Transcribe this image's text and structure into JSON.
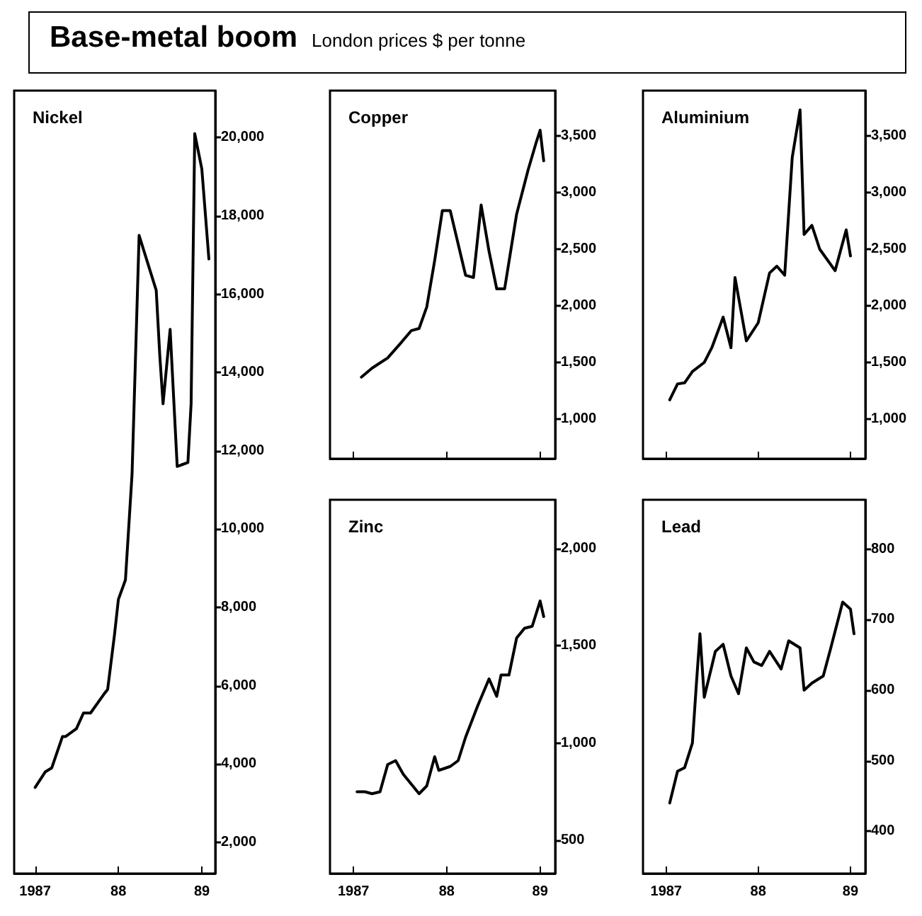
{
  "chart_data": [
    {
      "type": "other",
      "title": "Base-metal boom",
      "subtitle": "London prices $ per tonne"
    },
    {
      "type": "line",
      "title": "Nickel",
      "color": "#000000",
      "marker": "none",
      "grid": false,
      "line_style": "solid",
      "xlim": [
        "1986-10",
        "1989-03"
      ],
      "xticks": [
        {
          "value": "1987-01",
          "label": "1987"
        },
        {
          "value": "1988-01",
          "label": "88"
        },
        {
          "value": "1989-01",
          "label": "89"
        }
      ],
      "ylim": [
        1200,
        21200
      ],
      "yticks": [
        {
          "value": 2000,
          "label": "2,000"
        },
        {
          "value": 4000,
          "label": "4,000"
        },
        {
          "value": 6000,
          "label": "6,000"
        },
        {
          "value": 8000,
          "label": "8,000"
        },
        {
          "value": 10000,
          "label": "10,000"
        },
        {
          "value": 12000,
          "label": "12,000"
        },
        {
          "value": 14000,
          "label": "14,000"
        },
        {
          "value": 16000,
          "label": "16,000"
        },
        {
          "value": 18000,
          "label": "18,000"
        },
        {
          "value": 20000,
          "label": "20,000"
        }
      ],
      "x": [
        "1987-01-01",
        "1987-02-15",
        "1987-03-15",
        "1987-05-01",
        "1987-05-15",
        "1987-07-01",
        "1987-08-01",
        "1987-09-01",
        "1987-11-01",
        "1987-11-15",
        "1987-12-15",
        "1988-01-01",
        "1988-02-01",
        "1988-03-01",
        "1988-04-01",
        "1988-06-15",
        "1988-07-01",
        "1988-07-15",
        "1988-08-15",
        "1988-09-15",
        "1988-11-01",
        "1988-11-15",
        "1988-12-01",
        "1989-01-01",
        "1989-02-01"
      ],
      "values": [
        3400,
        3800,
        3900,
        4700,
        4700,
        4900,
        5300,
        5300,
        5800,
        5900,
        7300,
        8200,
        8700,
        11400,
        17500,
        16100,
        14400,
        13200,
        15100,
        11600,
        11700,
        13200,
        20100,
        19200,
        16900
      ]
    },
    {
      "type": "line",
      "title": "Copper",
      "color": "#000000",
      "marker": "none",
      "grid": false,
      "line_style": "solid",
      "tick_labels": "y",
      "xlim": [
        "1986-10",
        "1989-03"
      ],
      "xticks": [
        {
          "value": "1987-01",
          "label": null
        },
        {
          "value": "1988-01",
          "label": null
        },
        {
          "value": "1989-01",
          "label": null
        }
      ],
      "ylim": [
        650,
        3900
      ],
      "yticks": [
        {
          "value": 1000,
          "label": "1,000"
        },
        {
          "value": 1500,
          "label": "1,500"
        },
        {
          "value": 2000,
          "label": "2,000"
        },
        {
          "value": 2500,
          "label": "2,500"
        },
        {
          "value": 3000,
          "label": "3,000"
        },
        {
          "value": 3500,
          "label": "3,500"
        }
      ],
      "x": [
        "1987-02-01",
        "1987-03-15",
        "1987-05-15",
        "1987-07-01",
        "1987-08-15",
        "1987-09-15",
        "1987-10-15",
        "1987-11-15",
        "1987-12-15",
        "1988-01-15",
        "1988-03-15",
        "1988-04-15",
        "1988-05-15",
        "1988-06-15",
        "1988-07-15",
        "1988-08-15",
        "1988-10-01",
        "1988-11-15",
        "1988-12-15",
        "1989-01-01",
        "1989-01-15"
      ],
      "values": [
        1370,
        1450,
        1540,
        1660,
        1780,
        1800,
        1990,
        2400,
        2840,
        2840,
        2270,
        2250,
        2890,
        2480,
        2150,
        2150,
        2810,
        3200,
        3430,
        3550,
        3280
      ]
    },
    {
      "type": "line",
      "title": "Aluminium",
      "color": "#000000",
      "marker": "none",
      "grid": false,
      "line_style": "solid",
      "tick_labels": "y",
      "xlim": [
        "1986-10",
        "1989-03"
      ],
      "xticks": [
        {
          "value": "1987-01",
          "label": null
        },
        {
          "value": "1988-01",
          "label": null
        },
        {
          "value": "1989-01",
          "label": null
        }
      ],
      "ylim": [
        650,
        3900
      ],
      "yticks": [
        {
          "value": 1000,
          "label": "1,000"
        },
        {
          "value": 1500,
          "label": "1,500"
        },
        {
          "value": 2000,
          "label": "2,000"
        },
        {
          "value": 2500,
          "label": "2,500"
        },
        {
          "value": 3000,
          "label": "3,000"
        },
        {
          "value": 3500,
          "label": "3,500"
        }
      ],
      "x": [
        "1987-01-15",
        "1987-02-15",
        "1987-03-15",
        "1987-04-15",
        "1987-06-01",
        "1987-07-01",
        "1987-08-15",
        "1987-09-15",
        "1987-10-01",
        "1987-11-15",
        "1988-01-01",
        "1988-02-15",
        "1988-03-15",
        "1988-04-15",
        "1988-05-15",
        "1988-06-15",
        "1988-07-01",
        "1988-08-01",
        "1988-09-01",
        "1988-11-01",
        "1988-12-15",
        "1989-01-01"
      ],
      "values": [
        1170,
        1310,
        1320,
        1420,
        1500,
        1630,
        1900,
        1630,
        2250,
        1690,
        1850,
        2290,
        2350,
        2270,
        3310,
        3730,
        2630,
        2710,
        2500,
        2310,
        2670,
        2440
      ]
    },
    {
      "type": "line",
      "title": "Zinc",
      "color": "#000000",
      "marker": "none",
      "grid": false,
      "line_style": "solid",
      "xlim": [
        "1986-10",
        "1989-03"
      ],
      "xticks": [
        {
          "value": "1987-01",
          "label": "1987"
        },
        {
          "value": "1988-01",
          "label": "88"
        },
        {
          "value": "1989-01",
          "label": "89"
        }
      ],
      "ylim": [
        330,
        2250
      ],
      "yticks": [
        {
          "value": 500,
          "label": "500"
        },
        {
          "value": 1000,
          "label": "1,000"
        },
        {
          "value": 1500,
          "label": "1,500"
        },
        {
          "value": 2000,
          "label": "2,000"
        }
      ],
      "x": [
        "1987-01-15",
        "1987-02-15",
        "1987-03-15",
        "1987-04-15",
        "1987-05-15",
        "1987-06-15",
        "1987-07-15",
        "1987-09-15",
        "1987-10-15",
        "1987-11-15",
        "1987-12-01",
        "1988-01-15",
        "1988-02-15",
        "1988-03-15",
        "1988-05-01",
        "1988-06-15",
        "1988-07-15",
        "1988-08-01",
        "1988-09-01",
        "1988-10-01",
        "1988-11-01",
        "1988-12-01",
        "1989-01-01",
        "1989-01-15"
      ],
      "values": [
        750,
        750,
        740,
        750,
        890,
        910,
        840,
        740,
        780,
        930,
        860,
        880,
        910,
        1030,
        1190,
        1330,
        1240,
        1350,
        1350,
        1540,
        1590,
        1600,
        1730,
        1650
      ]
    },
    {
      "type": "line",
      "title": "Lead",
      "color": "#000000",
      "marker": "none",
      "grid": false,
      "line_style": "solid",
      "xlim": [
        "1986-10",
        "1989-03"
      ],
      "xticks": [
        {
          "value": "1987-01",
          "label": "1987"
        },
        {
          "value": "1988-01",
          "label": "88"
        },
        {
          "value": "1989-01",
          "label": "89"
        }
      ],
      "ylim": [
        340,
        870
      ],
      "yticks": [
        {
          "value": 400,
          "label": "400"
        },
        {
          "value": 500,
          "label": "500"
        },
        {
          "value": 600,
          "label": "600"
        },
        {
          "value": 700,
          "label": "700"
        },
        {
          "value": 800,
          "label": "800"
        }
      ],
      "x": [
        "1987-01-15",
        "1987-02-15",
        "1987-03-15",
        "1987-04-15",
        "1987-05-01",
        "1987-05-15",
        "1987-06-01",
        "1987-07-15",
        "1987-08-15",
        "1987-09-15",
        "1987-10-15",
        "1987-11-15",
        "1987-12-15",
        "1988-01-15",
        "1988-02-15",
        "1988-04-01",
        "1988-05-01",
        "1988-06-15",
        "1988-07-01",
        "1988-08-01",
        "1988-09-15",
        "1988-10-15",
        "1988-12-01",
        "1989-01-01",
        "1989-01-15"
      ],
      "values": [
        440,
        485,
        490,
        525,
        610,
        680,
        590,
        655,
        665,
        620,
        595,
        660,
        640,
        635,
        655,
        630,
        670,
        660,
        600,
        610,
        620,
        660,
        725,
        715,
        680
      ]
    }
  ]
}
